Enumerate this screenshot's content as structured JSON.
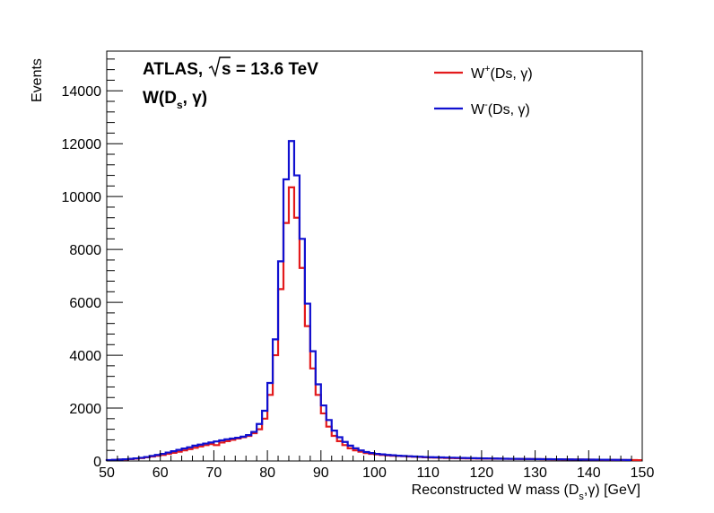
{
  "chart_data": {
    "type": "line",
    "xlabel": "Reconstructed W mass (D",
    "xlabel_sub": "s",
    "xlabel_tail": ",γ) [GeV]",
    "ylabel": "Events",
    "xlim": [
      50,
      150
    ],
    "ylim": [
      0,
      15500
    ],
    "x_ticks": [
      "50",
      "60",
      "70",
      "80",
      "90",
      "100",
      "110",
      "120",
      "130",
      "140",
      "150"
    ],
    "y_ticks": [
      "0",
      "2000",
      "4000",
      "6000",
      "8000",
      "10000",
      "12000",
      "14000"
    ],
    "grid": false,
    "legend_position": "top-right",
    "annotations": {
      "atlas": "ATLAS,",
      "energy_pre": "s = 13.6 TeV",
      "process_main": "W(D",
      "process_sub": "s",
      "process_tail": ", γ)"
    },
    "bin_edges": [
      50,
      51,
      52,
      53,
      54,
      55,
      56,
      57,
      58,
      59,
      60,
      61,
      62,
      63,
      64,
      65,
      66,
      67,
      68,
      69,
      70,
      71,
      72,
      73,
      74,
      75,
      76,
      77,
      78,
      79,
      80,
      81,
      82,
      83,
      84,
      85,
      86,
      87,
      88,
      89,
      90,
      91,
      92,
      93,
      94,
      95,
      96,
      97,
      98,
      99,
      100,
      101,
      102,
      103,
      104,
      105,
      106,
      107,
      108,
      109,
      110,
      111,
      112,
      113,
      114,
      115,
      116,
      117,
      118,
      119,
      120,
      121,
      122,
      123,
      124,
      125,
      126,
      127,
      128,
      129,
      130,
      131,
      132,
      133,
      134,
      135,
      136,
      137,
      138,
      139,
      140,
      141,
      142,
      143,
      144,
      145,
      146,
      147,
      148,
      149,
      150
    ],
    "series": [
      {
        "name_main": "W",
        "name_sup": "+",
        "name_tail": "(Ds, γ)",
        "color": "#e31a1c",
        "values": [
          30,
          40,
          50,
          60,
          70,
          90,
          110,
          140,
          170,
          200,
          230,
          270,
          310,
          350,
          400,
          450,
          500,
          550,
          600,
          640,
          600,
          700,
          750,
          800,
          850,
          900,
          950,
          1050,
          1200,
          1600,
          2500,
          4000,
          6500,
          9000,
          10350,
          9200,
          7300,
          5100,
          3500,
          2500,
          1800,
          1300,
          950,
          750,
          600,
          480,
          400,
          350,
          300,
          270,
          250,
          230,
          210,
          200,
          190,
          180,
          170,
          160,
          150,
          140,
          130,
          125,
          120,
          115,
          110,
          105,
          100,
          98,
          95,
          92,
          90,
          88,
          86,
          84,
          82,
          80,
          78,
          76,
          74,
          72,
          70,
          68,
          66,
          64,
          62,
          60,
          58,
          56,
          54,
          52,
          50,
          48,
          46,
          44,
          42,
          40,
          38,
          36,
          34,
          32
        ]
      },
      {
        "name_main": "W",
        "name_sup": "-",
        "name_tail": "(Ds, γ)",
        "color": "#1010d0",
        "values": [
          35,
          45,
          55,
          65,
          80,
          100,
          120,
          150,
          190,
          230,
          270,
          320,
          370,
          420,
          470,
          520,
          580,
          620,
          660,
          700,
          740,
          780,
          820,
          850,
          880,
          920,
          980,
          1100,
          1400,
          1900,
          2950,
          4600,
          7550,
          10650,
          12100,
          10800,
          8400,
          5950,
          4150,
          2900,
          2100,
          1550,
          1150,
          900,
          720,
          580,
          480,
          400,
          340,
          300,
          270,
          250,
          230,
          215,
          200,
          190,
          180,
          170,
          160,
          150,
          145,
          140,
          135,
          130,
          125,
          120,
          115,
          110,
          106,
          102,
          98,
          95,
          92,
          89,
          86,
          83,
          80,
          78,
          76,
          74,
          72,
          70,
          68,
          66,
          64,
          62,
          60,
          58,
          56,
          54,
          52,
          50,
          48,
          46,
          44,
          42,
          40,
          38
        ]
      }
    ]
  }
}
